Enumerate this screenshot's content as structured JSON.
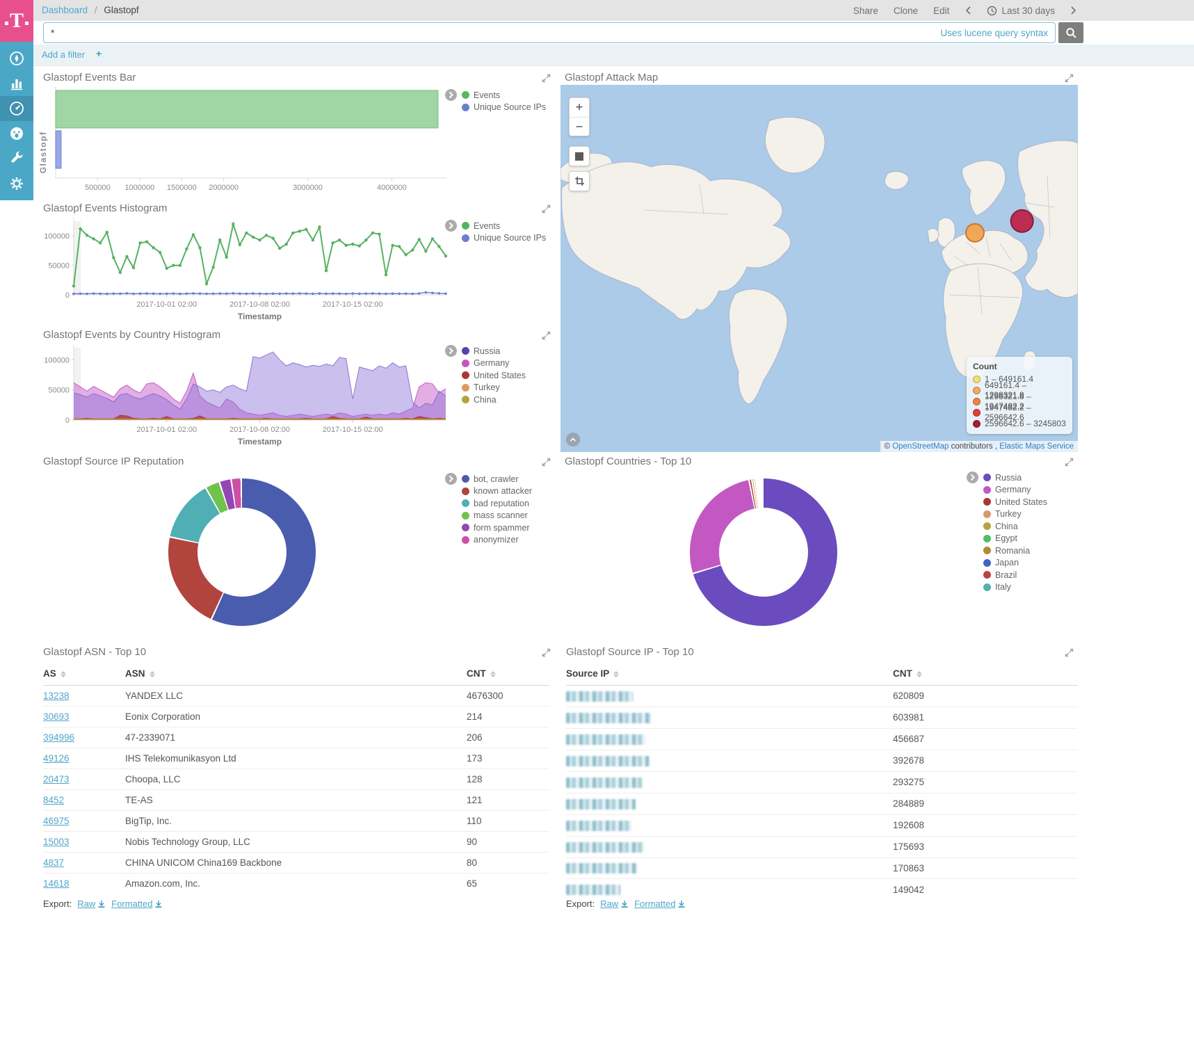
{
  "header": {
    "breadcrumb": {
      "root": "Dashboard",
      "sep": "/",
      "current": "Glastopf"
    },
    "actions": {
      "share": "Share",
      "clone": "Clone",
      "edit": "Edit"
    },
    "time_range": "Last 30 days",
    "query": {
      "value": "*",
      "hint": "Uses lucene query syntax"
    },
    "filter": {
      "add_label": "Add a filter"
    }
  },
  "sidebar": {
    "items": [
      "discover",
      "visualize",
      "dashboard",
      "monitoring",
      "tools",
      "management"
    ],
    "active": "dashboard"
  },
  "panels": {
    "events_bar": {
      "title": "Glastopf Events Bar",
      "chart_data": {
        "type": "bar",
        "orientation": "horizontal",
        "categories": [
          "Glastopf"
        ],
        "ylabel": "Glastopf",
        "series": [
          {
            "name": "Events",
            "value": 4550000,
            "fill": "#9FD6A4",
            "stroke": "#74BD7B",
            "legend_color": "#57B65F"
          },
          {
            "name": "Unique Source IPs",
            "value": 65000,
            "fill": "#9AA8E3",
            "stroke": "#6A7FD2",
            "legend_color": "#6A7FD2"
          }
        ],
        "xticks": [
          500000,
          1000000,
          1500000,
          2000000,
          3000000,
          4000000
        ],
        "xmax": 4650000
      }
    },
    "events_histogram": {
      "title": "Glastopf Events Histogram",
      "chart_data": {
        "type": "line",
        "xlabel": "Timestamp",
        "x_ticks": [
          "2017-10-01 02:00",
          "2017-10-08 02:00",
          "2017-10-15 02:00"
        ],
        "yticks": [
          100000,
          50000,
          0
        ],
        "ymax": 125000,
        "series": [
          {
            "name": "Events",
            "color": "#56B262",
            "values": [
              15000,
              112000,
              101000,
              95000,
              88000,
              106000,
              63000,
              38000,
              65000,
              46000,
              88000,
              90000,
              80000,
              72000,
              45000,
              50000,
              50000,
              78000,
              102000,
              80000,
              19000,
              47000,
              93000,
              64000,
              120000,
              85000,
              105000,
              98000,
              93000,
              101000,
              96000,
              79000,
              86000,
              105000,
              108000,
              111000,
              93000,
              115000,
              41000,
              88000,
              93000,
              84000,
              86000,
              83000,
              93000,
              105000,
              103000,
              34000,
              84000,
              82000,
              68000,
              76000,
              94000,
              74000,
              95000,
              82000,
              66000
            ]
          },
          {
            "name": "Unique Source IPs",
            "color": "#6A7FD2",
            "values": [
              1800,
              2100,
              1900,
              2300,
              2000,
              1800,
              2200,
              2000,
              2600,
              1900,
              2200,
              2400,
              2100,
              1900,
              2000,
              2300,
              1800,
              2100,
              2500,
              2200,
              1900,
              2000,
              2300,
              2100,
              2600,
              2200,
              2000,
              2400,
              2100,
              1900,
              2200,
              2000,
              2300,
              2100,
              2500,
              2200,
              1900,
              2400,
              2000,
              2200,
              2100,
              1900,
              2300,
              2000,
              2200,
              2400,
              2100,
              1900,
              2200,
              2000,
              2100,
              1900,
              2300,
              4200,
              3200,
              2600,
              2200
            ]
          }
        ]
      }
    },
    "country_histogram": {
      "title": "Glastopf Events by Country Histogram",
      "chart_data": {
        "type": "area",
        "mode": "overlap",
        "xlabel": "Timestamp",
        "x_ticks": [
          "2017-10-01 02:00",
          "2017-10-08 02:00",
          "2017-10-15 02:00"
        ],
        "yticks": [
          100000,
          50000,
          0
        ],
        "ymax": 120000,
        "series": [
          {
            "name": "Germany",
            "color": "#C85EC8",
            "stroke": "#B94FB9",
            "opacity": 0.5,
            "values": [
              62000,
              55000,
              48000,
              56000,
              50000,
              44000,
              38000,
              52000,
              58000,
              50000,
              45000,
              60000,
              62000,
              55000,
              46000,
              35000,
              28000,
              48000,
              78000,
              40000,
              30000,
              25000,
              20000,
              35000,
              30000,
              18000,
              12000,
              10000,
              8000,
              10000,
              12000,
              8000,
              6000,
              8000,
              10000,
              8000,
              6000,
              8000,
              10000,
              8000,
              12000,
              10000,
              6000,
              8000,
              10000,
              8000,
              10000,
              8000,
              12000,
              10000,
              15000,
              20000,
              55000,
              62000,
              60000,
              45000,
              52000
            ]
          },
          {
            "name": "Russia",
            "color": "#8B72D8",
            "stroke": "#7E63CE",
            "opacity": 0.45,
            "values": [
              45000,
              42000,
              38000,
              44000,
              40000,
              36000,
              30000,
              42000,
              44000,
              38000,
              35000,
              40000,
              44000,
              40000,
              34000,
              25000,
              18000,
              35000,
              60000,
              55000,
              48000,
              50000,
              46000,
              55000,
              58000,
              52000,
              48000,
              105000,
              103000,
              108000,
              113000,
              100000,
              90000,
              95000,
              92000,
              88000,
              91000,
              89000,
              93000,
              90000,
              104000,
              102000,
              35000,
              88000,
              85000,
              82000,
              90000,
              86000,
              95000,
              88000,
              90000,
              30000,
              20000,
              28000,
              25000,
              48000,
              40000
            ]
          },
          {
            "name": "United States",
            "color": "#A93832",
            "stroke": "#A93832",
            "opacity": 0.75,
            "values": [
              2000,
              2000,
              3000,
              2000,
              2000,
              2000,
              2000,
              8000,
              7000,
              3000,
              2000,
              2000,
              3000,
              2000,
              6000,
              2000,
              2000,
              2000,
              3000,
              7000,
              2000,
              2000,
              2000,
              2000,
              3000,
              2000,
              2000,
              2000,
              2000,
              3000,
              2000,
              2000,
              2000,
              2000,
              2000,
              3000,
              2000,
              2000,
              2000,
              6000,
              3000,
              2000,
              2000,
              2000,
              5000,
              2000,
              2000,
              2000,
              2000,
              2000,
              3000,
              2000,
              6000,
              4000,
              2000,
              3000,
              2000
            ]
          },
          {
            "name": "Turkey",
            "color": "#D89B66",
            "stroke": "#D89B66",
            "opacity": 0.8,
            "constant": 1500,
            "points": 57
          },
          {
            "name": "China",
            "color": "#B5A23D",
            "stroke": "#B5A23D",
            "opacity": 0.8,
            "constant": 1200,
            "points": 57
          }
        ],
        "legend": [
          {
            "label": "Russia",
            "color": "#5B3FAE"
          },
          {
            "label": "Germany",
            "color": "#C358C3"
          },
          {
            "label": "United States",
            "color": "#A93832"
          },
          {
            "label": "Turkey",
            "color": "#D89B66"
          },
          {
            "label": "China",
            "color": "#B5A23D"
          }
        ]
      }
    },
    "attack_map": {
      "title": "Glastopf Attack Map",
      "legend_title": "Count",
      "legend_ranges": [
        {
          "label": "1 – 649161.4",
          "color": "#FADE6E"
        },
        {
          "label": "649161.4 – 1298321.8",
          "color": "#F6A95B"
        },
        {
          "label": "1298321.8 – 1947482.2",
          "color": "#EF8345"
        },
        {
          "label": "1947482.2 – 2596642.6",
          "color": "#E33F34"
        },
        {
          "label": "2596642.6 – 3245803",
          "color": "#A81D33"
        }
      ],
      "attribution": {
        "prefix": "©",
        "osm": "OpenStreetMap",
        "middle": "contributors ,",
        "ems": "Elastic Maps Service"
      },
      "chart_data": {
        "type": "map_points",
        "points": [
          {
            "region": "Central Europe",
            "x_pct": 80.1,
            "y_pct": 40.3,
            "radius": 13,
            "color": "#F2A34E",
            "border": "#C9782F"
          },
          {
            "region": "Western Russia",
            "x_pct": 89.2,
            "y_pct": 37.1,
            "radius": 16,
            "color": "#BE2449",
            "border": "#8E1A38"
          }
        ]
      }
    },
    "reputation": {
      "title": "Glastopf Source IP Reputation",
      "chart_data": {
        "type": "pie",
        "donut": true,
        "slices": [
          {
            "label": "bot, crawler",
            "pct": 57,
            "color": "#4A5CAD"
          },
          {
            "label": "known attacker",
            "pct": 21.5,
            "color": "#B2443E"
          },
          {
            "label": "bad reputation",
            "pct": 13.5,
            "color": "#4FAFB5"
          },
          {
            "label": "mass scanner",
            "pct": 3.2,
            "color": "#6FC24A"
          },
          {
            "label": "form spammer",
            "pct": 2.6,
            "color": "#9347B5"
          },
          {
            "label": "anonymizer",
            "pct": 2.2,
            "color": "#CE4FA6"
          }
        ]
      }
    },
    "countries": {
      "title": "Glastopf Countries - Top 10",
      "chart_data": {
        "type": "pie",
        "donut": true,
        "slices": [
          {
            "label": "Russia",
            "pct": 70.5,
            "color": "#6A4CBE"
          },
          {
            "label": "Germany",
            "pct": 26.5,
            "color": "#C358C3"
          },
          {
            "label": "United States",
            "pct": 0.6,
            "color": "#A93832"
          },
          {
            "label": "Turkey",
            "pct": 0.5,
            "color": "#D89B66"
          },
          {
            "label": "China",
            "pct": 0.4,
            "color": "#B5A23D"
          },
          {
            "label": "Egypt",
            "pct": 0.35,
            "color": "#4FBD6C"
          },
          {
            "label": "Romania",
            "pct": 0.3,
            "color": "#AE8A39"
          },
          {
            "label": "Japan",
            "pct": 0.3,
            "color": "#4161C4"
          },
          {
            "label": "Brazil",
            "pct": 0.28,
            "color": "#BF3F48"
          },
          {
            "label": "Italy",
            "pct": 0.27,
            "color": "#4FB3AE"
          }
        ]
      }
    },
    "asn_table": {
      "title": "Glastopf ASN - Top 10",
      "columns": [
        "AS",
        "ASN",
        "CNT"
      ],
      "rows": [
        [
          "13238",
          "YANDEX LLC",
          "4676300"
        ],
        [
          "30693",
          "Eonix Corporation",
          "214"
        ],
        [
          "394996",
          "47-2339071",
          "206"
        ],
        [
          "49126",
          "IHS Telekomunikasyon Ltd",
          "173"
        ],
        [
          "20473",
          "Choopa, LLC",
          "128"
        ],
        [
          "8452",
          "TE-AS",
          "121"
        ],
        [
          "46975",
          "BigTip, Inc.",
          "110"
        ],
        [
          "15003",
          "Nobis Technology Group, LLC",
          "90"
        ],
        [
          "4837",
          "CHINA UNICOM China169 Backbone",
          "80"
        ],
        [
          "14618",
          "Amazon.com, Inc.",
          "65"
        ]
      ],
      "export": {
        "label": "Export:",
        "raw": "Raw",
        "formatted": "Formatted"
      }
    },
    "ip_table": {
      "title": "Glastopf Source IP - Top 10",
      "columns": [
        "Source IP",
        "CNT"
      ],
      "rows": [
        {
          "redacted": true,
          "blur_width": 96,
          "cnt": "620809"
        },
        {
          "redacted": true,
          "blur_width": 122,
          "cnt": "603981"
        },
        {
          "redacted": true,
          "blur_width": 114,
          "cnt": "456687"
        },
        {
          "redacted": true,
          "blur_width": 120,
          "cnt": "392678"
        },
        {
          "redacted": true,
          "blur_width": 110,
          "cnt": "293275"
        },
        {
          "redacted": true,
          "blur_width": 100,
          "cnt": "284889"
        },
        {
          "redacted": true,
          "blur_width": 94,
          "cnt": "192608"
        },
        {
          "redacted": true,
          "blur_width": 112,
          "cnt": "175693"
        },
        {
          "redacted": true,
          "blur_width": 102,
          "cnt": "170863"
        },
        {
          "redacted": true,
          "blur_width": 78,
          "cnt": "149042"
        }
      ],
      "export": {
        "label": "Export:",
        "raw": "Raw",
        "formatted": "Formatted"
      }
    }
  }
}
